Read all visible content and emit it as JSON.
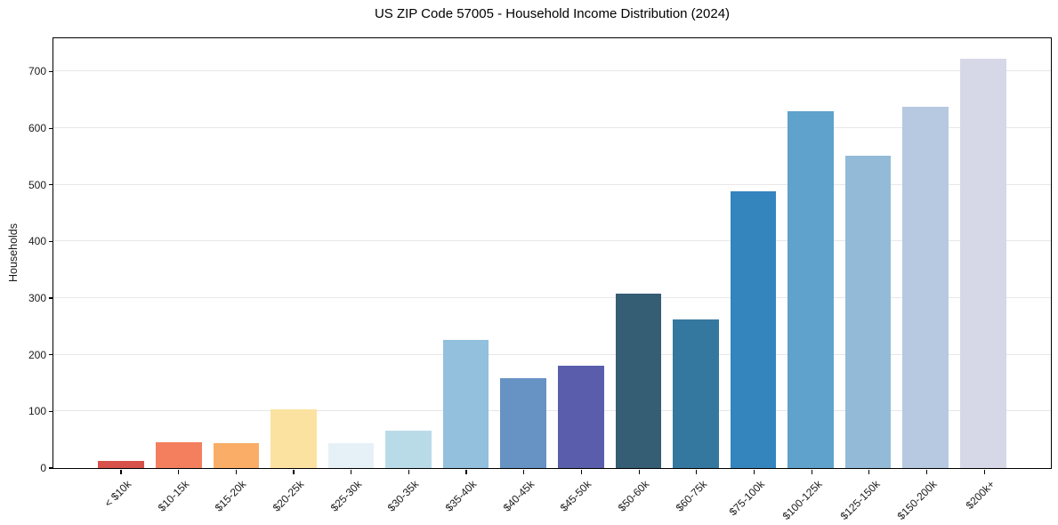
{
  "title": "US ZIP Code 57005 - Household Income Distribution (2024)",
  "colors": {
    "background": "#ffffff",
    "spine": "#000000",
    "grid": "#e7e7e7",
    "text": "#1a1a1a"
  },
  "chart_data": {
    "type": "bar",
    "title": "US ZIP Code 57005 - Household Income Distribution (2024)",
    "xlabel": "",
    "ylabel": "Households",
    "categories": [
      "< $10k",
      "$10-15k",
      "$15-20k",
      "$20-25k",
      "$25-30k",
      "$30-35k",
      "$35-40k",
      "$40-45k",
      "$45-50k",
      "$50-60k",
      "$60-75k",
      "$75-100k",
      "$100-125k",
      "$125-150k",
      "$150-200k",
      "$200k+"
    ],
    "values": [
      13,
      46,
      44,
      104,
      44,
      67,
      227,
      159,
      182,
      310,
      264,
      490,
      632,
      553,
      640,
      725
    ],
    "bar_colors": [
      "#d6524a",
      "#f47f5e",
      "#f9ad67",
      "#fce2a0",
      "#e6f1f7",
      "#b9dbe8",
      "#92c0dd",
      "#6792c4",
      "#595dab",
      "#355d74",
      "#35789f",
      "#3484be",
      "#5fa2cc",
      "#93bbd8",
      "#b6c9e0",
      "#d6d8e8"
    ],
    "yticks": [
      0,
      100,
      200,
      300,
      400,
      500,
      600,
      700
    ],
    "ylim": [
      0,
      762
    ],
    "grid": "horizontal",
    "legend": "none",
    "x_tick_rotation": 45
  }
}
